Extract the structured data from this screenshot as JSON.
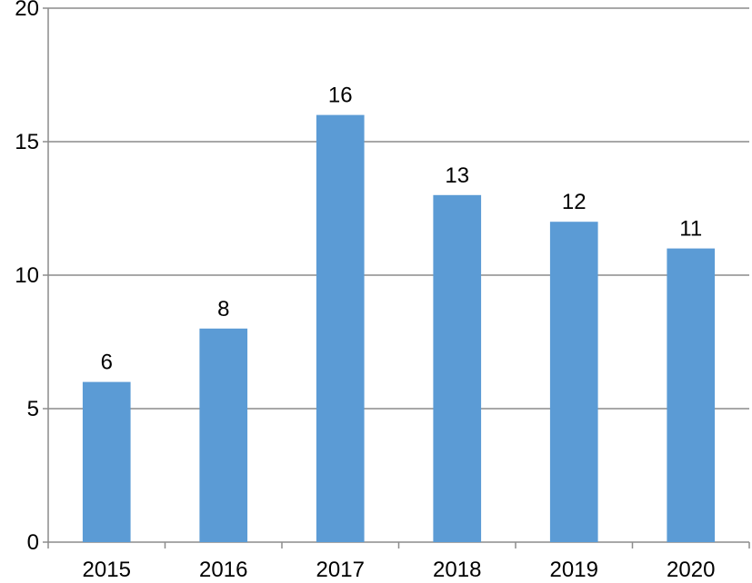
{
  "chart_data": {
    "type": "bar",
    "title": "",
    "xlabel": "",
    "ylabel": "",
    "categories": [
      "2015",
      "2016",
      "2017",
      "2018",
      "2019",
      "2020"
    ],
    "values": [
      6,
      8,
      16,
      13,
      12,
      11
    ],
    "ylim": [
      0,
      20
    ],
    "yticks": [
      0,
      5,
      10,
      15,
      20
    ],
    "grid": true,
    "legend": "none",
    "data_labels": true,
    "colors": {
      "bar": "#5b9bd5",
      "grid": "#8c8c8c",
      "axis": "#8c8c8c",
      "text": "#000000"
    }
  }
}
